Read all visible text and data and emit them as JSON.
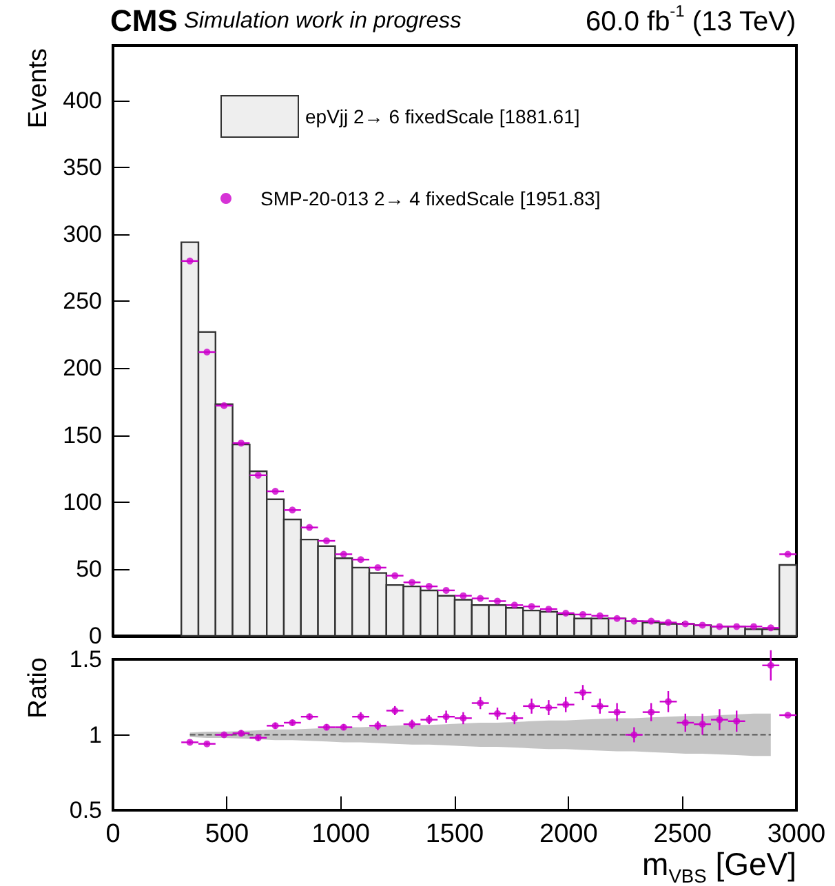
{
  "chart_data": [
    {
      "type": "histogram",
      "title": "CMS",
      "subtitle": "Simulation work in progress",
      "annotations": [
        "60.0 fb$^{-1}$ (13 TeV)"
      ],
      "ylabel": "Events",
      "bins": [
        300,
        375,
        450,
        525,
        600,
        675,
        750,
        825,
        900,
        975,
        1050,
        1125,
        1200,
        1275,
        1350,
        1425,
        1500,
        1575,
        1650,
        1725,
        1800,
        1875,
        1950,
        2025,
        2100,
        2175,
        2250,
        2325,
        2400,
        2475,
        2550,
        2625,
        2700,
        2775,
        2850,
        2925,
        3000
      ],
      "series": [
        {
          "name": "epVjj 2→ 6 fixedScale [1881.61]",
          "color": "#eeeeee",
          "values": [
            294,
            227,
            173,
            143,
            123,
            102,
            87,
            72,
            67,
            58,
            51,
            47,
            38,
            37,
            34,
            30,
            27,
            23,
            23,
            21,
            19,
            18,
            16,
            13,
            13,
            13,
            11,
            10,
            9,
            9,
            8,
            7,
            7,
            5,
            5,
            53
          ]
        },
        {
          "type": "scatter",
          "marker": "circle",
          "name": "SMP-20-013 2→ 4 fixedScale [1951.83]",
          "color": "#cc00cc",
          "x": [
            337.5,
            412.5,
            487.5,
            562.5,
            637.5,
            712.5,
            787.5,
            862.5,
            937.5,
            1012.5,
            1087.5,
            1162.5,
            1237.5,
            1312.5,
            1387.5,
            1462.5,
            1537.5,
            1612.5,
            1687.5,
            1762.5,
            1837.5,
            1912.5,
            1987.5,
            2062.5,
            2137.5,
            2212.5,
            2287.5,
            2362.5,
            2437.5,
            2512.5,
            2587.5,
            2662.5,
            2737.5,
            2812.5,
            2887.5,
            2962.5
          ],
          "values": [
            280,
            212,
            172,
            144,
            120,
            108,
            94,
            81,
            71,
            61,
            57,
            51,
            45,
            40,
            37,
            34,
            30,
            28,
            26,
            23,
            22,
            20,
            17,
            16,
            15,
            13,
            11,
            11,
            10,
            9,
            8,
            7,
            7,
            7,
            6,
            61
          ],
          "xerrors": [
            37.5,
            37.5,
            37.5,
            37.5,
            37.5,
            37.5,
            37.5,
            37.5,
            37.5,
            37.5,
            37.5,
            37.5,
            37.5,
            37.5,
            37.5,
            37.5,
            37.5,
            37.5,
            37.5,
            37.5,
            37.5,
            37.5,
            37.5,
            37.5,
            37.5,
            37.5,
            37.5,
            37.5,
            37.5,
            37.5,
            37.5,
            37.5,
            37.5,
            37.5,
            37.5,
            37.5
          ]
        }
      ],
      "xlim": [
        0,
        3000
      ],
      "xticks": [
        0,
        500,
        1000,
        1500,
        2000,
        2500,
        3000
      ],
      "ylim": [
        0,
        441
      ],
      "yticks": [
        0,
        50,
        100,
        150,
        200,
        250,
        300,
        350,
        400
      ],
      "tick_labels": "y",
      "legend": "top"
    },
    {
      "type": "scatter",
      "ylabel": "Ratio",
      "xlabel": "m$_{VBS}$ [GeV]",
      "series": [
        {
          "marker": "circle",
          "color": "#cc00cc",
          "x": [
            337.5,
            412.5,
            487.5,
            562.5,
            637.5,
            712.5,
            787.5,
            862.5,
            937.5,
            1012.5,
            1087.5,
            1162.5,
            1237.5,
            1312.5,
            1387.5,
            1462.5,
            1537.5,
            1612.5,
            1687.5,
            1762.5,
            1837.5,
            1912.5,
            1987.5,
            2062.5,
            2137.5,
            2212.5,
            2287.5,
            2362.5,
            2437.5,
            2512.5,
            2587.5,
            2662.5,
            2737.5,
            2812.5,
            2887.5,
            2962.5
          ],
          "values": [
            0.95,
            0.94,
            1.0,
            1.01,
            0.98,
            1.06,
            1.08,
            1.12,
            1.05,
            1.05,
            1.12,
            1.06,
            1.16,
            1.07,
            1.1,
            1.12,
            1.11,
            1.21,
            1.14,
            1.11,
            1.19,
            1.18,
            1.2,
            1.28,
            1.19,
            1.15,
            1.0,
            1.15,
            1.22,
            1.08,
            1.07,
            1.1,
            1.09,
            null,
            1.46,
            1.13
          ],
          "errors": [
            0.01,
            0.01,
            0.01,
            0.02,
            0.02,
            0.02,
            0.02,
            0.02,
            0.02,
            0.02,
            0.03,
            0.03,
            0.03,
            0.03,
            0.03,
            0.04,
            0.04,
            0.04,
            0.04,
            0.04,
            0.05,
            0.05,
            0.05,
            0.05,
            0.05,
            0.06,
            0.05,
            0.06,
            0.07,
            0.06,
            0.07,
            0.07,
            0.07,
            null,
            0.1,
            null
          ],
          "xerrors": [
            37.5,
            37.5,
            37.5,
            37.5,
            37.5,
            37.5,
            37.5,
            37.5,
            37.5,
            37.5,
            37.5,
            37.5,
            37.5,
            37.5,
            37.5,
            37.5,
            37.5,
            37.5,
            37.5,
            37.5,
            37.5,
            37.5,
            37.5,
            37.5,
            37.5,
            37.5,
            37.5,
            37.5,
            37.5,
            37.5,
            37.5,
            37.5,
            37.5,
            null,
            37.5,
            37.5
          ]
        },
        {
          "type": "line",
          "color": "#555555",
          "line_style": "dashed",
          "x": [
            337.5,
            412.5,
            487.5,
            562.5,
            637.5,
            712.5,
            787.5,
            862.5,
            937.5,
            1012.5,
            1087.5,
            1162.5,
            1237.5,
            1312.5,
            1387.5,
            1462.5,
            1537.5,
            1612.5,
            1687.5,
            1762.5,
            1837.5,
            1912.5,
            1987.5,
            2062.5,
            2137.5,
            2212.5,
            2287.5,
            2362.5,
            2437.5,
            2512.5,
            2587.5,
            2662.5,
            2737.5,
            2812.5,
            2887.5
          ],
          "values": [
            1,
            1,
            1,
            1,
            1,
            1,
            1,
            1,
            1,
            1,
            1,
            1,
            1,
            1,
            1,
            1,
            1,
            1,
            1,
            1,
            1,
            1,
            1,
            1,
            1,
            1,
            1,
            1,
            1,
            1,
            1,
            1,
            1,
            1,
            1
          ],
          "upper": [
            1.015,
            1.02,
            1.02,
            1.025,
            1.03,
            1.035,
            1.035,
            1.04,
            1.045,
            1.05,
            1.05,
            1.055,
            1.06,
            1.065,
            1.065,
            1.07,
            1.075,
            1.08,
            1.08,
            1.085,
            1.09,
            1.095,
            1.095,
            1.1,
            1.105,
            1.11,
            1.11,
            1.115,
            1.12,
            1.125,
            1.125,
            1.13,
            1.135,
            1.14,
            1.14
          ],
          "lower": [
            0.985,
            0.98,
            0.98,
            0.975,
            0.97,
            0.965,
            0.965,
            0.96,
            0.955,
            0.95,
            0.95,
            0.945,
            0.94,
            0.935,
            0.935,
            0.93,
            0.925,
            0.92,
            0.92,
            0.915,
            0.91,
            0.905,
            0.905,
            0.9,
            0.895,
            0.89,
            0.89,
            0.885,
            0.88,
            0.875,
            0.875,
            0.87,
            0.865,
            0.86,
            0.86
          ]
        }
      ],
      "xlim": [
        0,
        3000
      ],
      "xticks": [
        0,
        500,
        1000,
        1500,
        2000,
        2500,
        3000
      ],
      "ylim": [
        0.5,
        1.5
      ],
      "yticks": [
        0.5,
        1,
        1.5
      ]
    }
  ]
}
